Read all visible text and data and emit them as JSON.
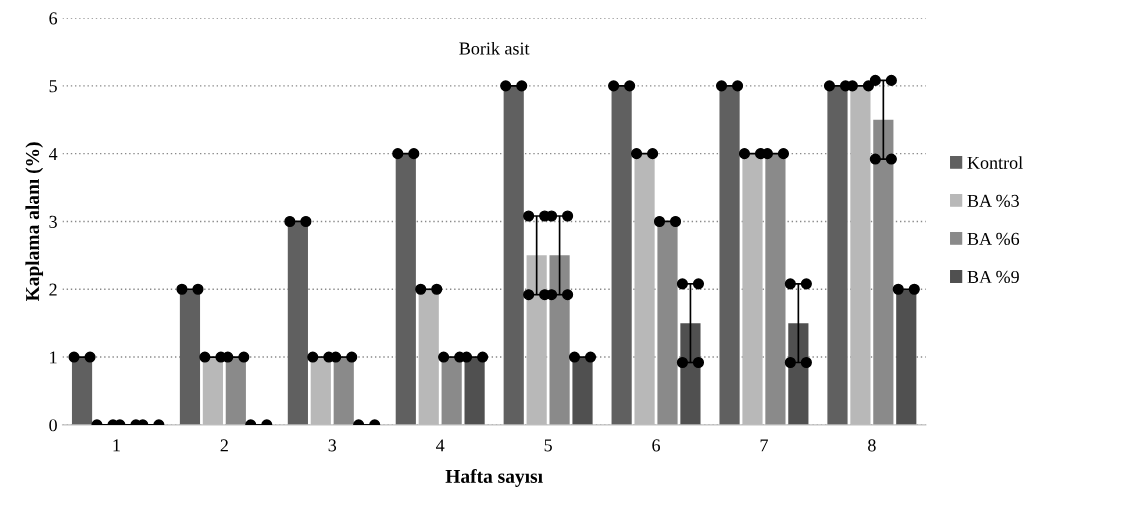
{
  "chart_data": {
    "type": "bar",
    "title": "Borik asit",
    "xlabel": "Hafta sayısı",
    "ylabel": "Kaplama alanı (%)",
    "categories": [
      "1",
      "2",
      "3",
      "4",
      "5",
      "6",
      "7",
      "8"
    ],
    "series": [
      {
        "name": "Kontrol",
        "color": "#606060",
        "values": [
          1,
          2,
          3,
          4,
          5,
          5,
          5,
          5
        ],
        "errors": [
          0,
          0,
          0,
          0,
          0,
          0,
          0,
          0
        ]
      },
      {
        "name": "BA %3",
        "color": "#b8b8b8",
        "values": [
          0,
          1,
          1,
          2,
          2.5,
          4,
          4,
          5
        ],
        "errors": [
          0,
          0,
          0,
          0,
          0.58,
          0,
          0,
          0
        ]
      },
      {
        "name": "BA %6",
        "color": "#8a8a8a",
        "values": [
          0,
          1,
          1,
          1,
          2.5,
          3,
          4,
          4.5
        ],
        "errors": [
          0,
          0,
          0,
          0,
          0.58,
          0,
          0,
          0.58
        ]
      },
      {
        "name": "BA %9",
        "color": "#505050",
        "values": [
          0,
          0,
          0,
          1,
          1,
          1.5,
          1.5,
          2
        ],
        "errors": [
          0,
          0,
          0,
          0,
          0,
          0.58,
          0.58,
          0
        ]
      }
    ],
    "ylim": [
      0,
      6
    ],
    "yticks": [
      0,
      1,
      2,
      3,
      4,
      5,
      6
    ],
    "grid": "y",
    "legend": "right"
  }
}
